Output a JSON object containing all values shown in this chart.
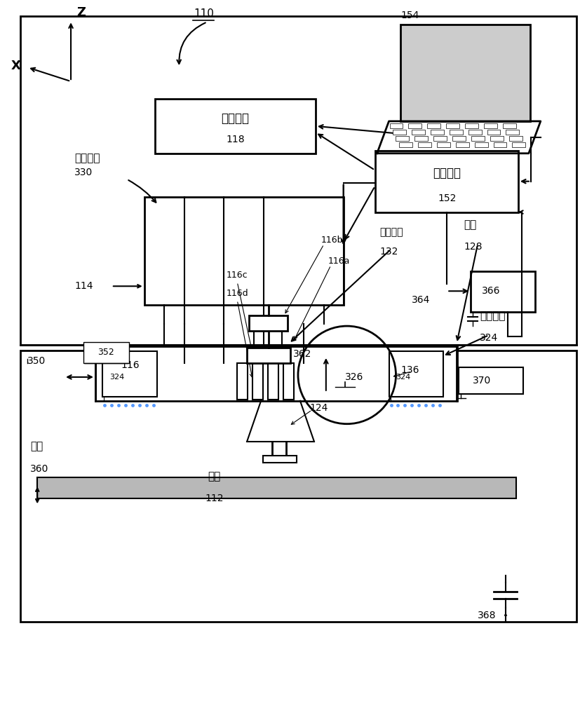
{
  "bg_color": "#ffffff",
  "line_color": "#000000",
  "fig_width": 8.27,
  "fig_height": 10.0,
  "labels": {
    "118_label": "用户介面",
    "118_num": "118",
    "supply_label": "供应设备",
    "supply_num": "330",
    "152_label": "控制单元",
    "152_num": "152",
    "128_label": "支架",
    "128_num": "128",
    "132_label": "调平装置",
    "132_num": "132",
    "hardening_label": "硬化装置",
    "hardening_num": "324",
    "326_num": "326",
    "tray_label": "托盘",
    "tray_num": "360",
    "object_label": "物体",
    "object_num": "112",
    "370_num": "370",
    "366_num": "366"
  }
}
